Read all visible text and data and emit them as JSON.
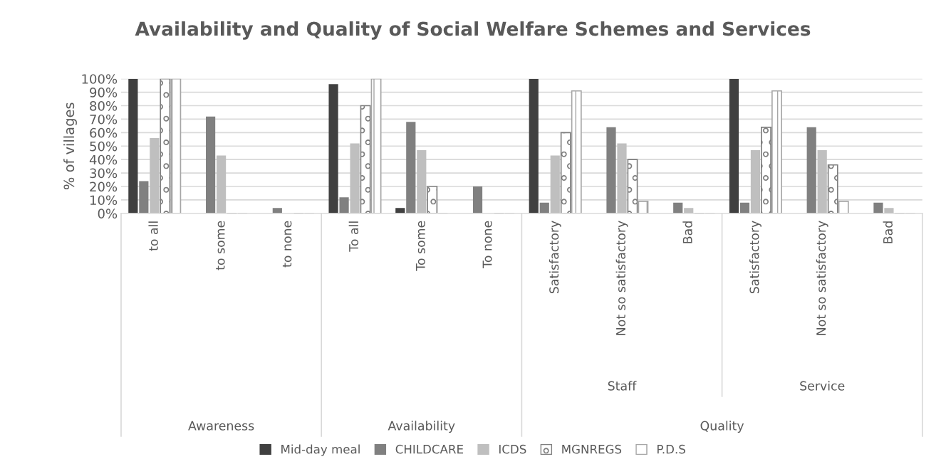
{
  "chart_data": {
    "type": "bar",
    "title": "Availability and Quality of Social Welfare Schemes and Services",
    "ylabel": "% of villages",
    "categories": [
      "to all",
      "to some",
      "to none",
      "To all",
      "To some",
      "To none",
      "Satisfactory",
      "Not so satisfactory",
      "Bad",
      "Satisfactory",
      "Not so satisfactory",
      "Bad"
    ],
    "annotations": [
      "Staff",
      "Service",
      "Awareness",
      "Availability",
      "Quality"
    ],
    "series": [
      {
        "name": "Mid-day meal",
        "color": "#404040",
        "values": [
          100,
          0,
          0,
          96,
          4,
          0,
          100,
          0,
          0,
          100,
          0,
          0
        ]
      },
      {
        "name": "CHILDCARE",
        "color": "#808080",
        "values": [
          24,
          72,
          4,
          12,
          68,
          20,
          8,
          64,
          8,
          8,
          64,
          8
        ]
      },
      {
        "name": "ICDS",
        "color": "#bfbfbf",
        "values": [
          56,
          43,
          0,
          52,
          47,
          0,
          43,
          52,
          4,
          47,
          47,
          4
        ]
      },
      {
        "name": "MGNREGS",
        "color": "#7f7f7f",
        "values": [
          100,
          0,
          0,
          80,
          20,
          0,
          60,
          40,
          0,
          64,
          36,
          0
        ]
      },
      {
        "name": "P.D.S",
        "color": "#a6a6a6",
        "values": [
          100,
          0,
          0,
          100,
          0,
          0,
          91,
          9,
          0,
          91,
          9,
          0
        ]
      }
    ],
    "ylim": [
      0,
      100
    ],
    "yticks": [
      {
        "value": 0,
        "label": "0%"
      },
      {
        "value": 10,
        "label": "10%"
      },
      {
        "value": 20,
        "label": "20%"
      },
      {
        "value": 30,
        "label": "30%"
      },
      {
        "value": 40,
        "label": "40%"
      },
      {
        "value": 50,
        "label": "50%"
      },
      {
        "value": 60,
        "label": "60%"
      },
      {
        "value": 70,
        "label": "70%"
      },
      {
        "value": 80,
        "label": "80%"
      },
      {
        "value": 90,
        "label": "90%"
      },
      {
        "value": 100,
        "label": "100%"
      }
    ],
    "grid": "y",
    "legend": "bottom"
  }
}
